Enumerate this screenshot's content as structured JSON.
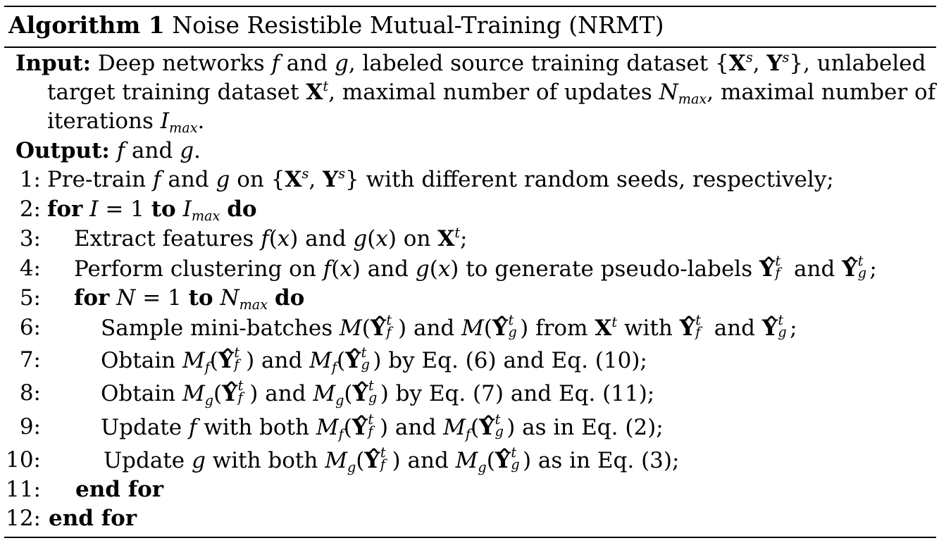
{
  "algorithm": {
    "label": "Algorithm 1",
    "title": "Noise Resistible Mutual-Training (NRMT)"
  },
  "input": {
    "label": "Input:",
    "line1": "Deep networks f and g, labeled source training dataset {X^s, Y^s}, unlabeled",
    "line2": "target training dataset X^t, maximal number of updates N_max, maximal number of",
    "line3": "iterations I_max."
  },
  "output": {
    "label": "Output:",
    "text": "f and g."
  },
  "steps": [
    {
      "num": "1:",
      "text": "Pre-train f and g on {X^s, Y^s} with different random seeds, respectively;"
    },
    {
      "num": "2:",
      "text": "for I = 1 to I_max do"
    },
    {
      "num": "3:",
      "text": "Extract features f(x) and g(x) on X^t;"
    },
    {
      "num": "4:",
      "text": "Perform clustering on f(x) and g(x) to generate pseudo-labels Ŷ^t_f and Ŷ^t_g;"
    },
    {
      "num": "5:",
      "text": "for N = 1 to N_max do"
    },
    {
      "num": "6:",
      "text": "Sample mini-batches M(Ŷ^t_f) and M(Ŷ^t_g) from X^t with Ŷ^t_f and Ŷ^t_g;"
    },
    {
      "num": "7:",
      "text": "Obtain M_f(Ŷ^t_f) and M_f(Ŷ^t_g) by Eq. (6) and Eq. (10);"
    },
    {
      "num": "8:",
      "text": "Obtain M_g(Ŷ^t_f) and M_g(Ŷ^t_g) by Eq. (7) and Eq. (11);"
    },
    {
      "num": "9:",
      "text": "Update f with both M_f(Ŷ^t_f) and M_f(Ŷ^t_g) as in Eq. (2);"
    },
    {
      "num": "10:",
      "text": "Update g with both M_g(Ŷ^t_f) and M_g(Ŷ^t_g) as in Eq. (3);"
    },
    {
      "num": "11:",
      "text": "end for"
    },
    {
      "num": "12:",
      "text": "end for"
    }
  ]
}
